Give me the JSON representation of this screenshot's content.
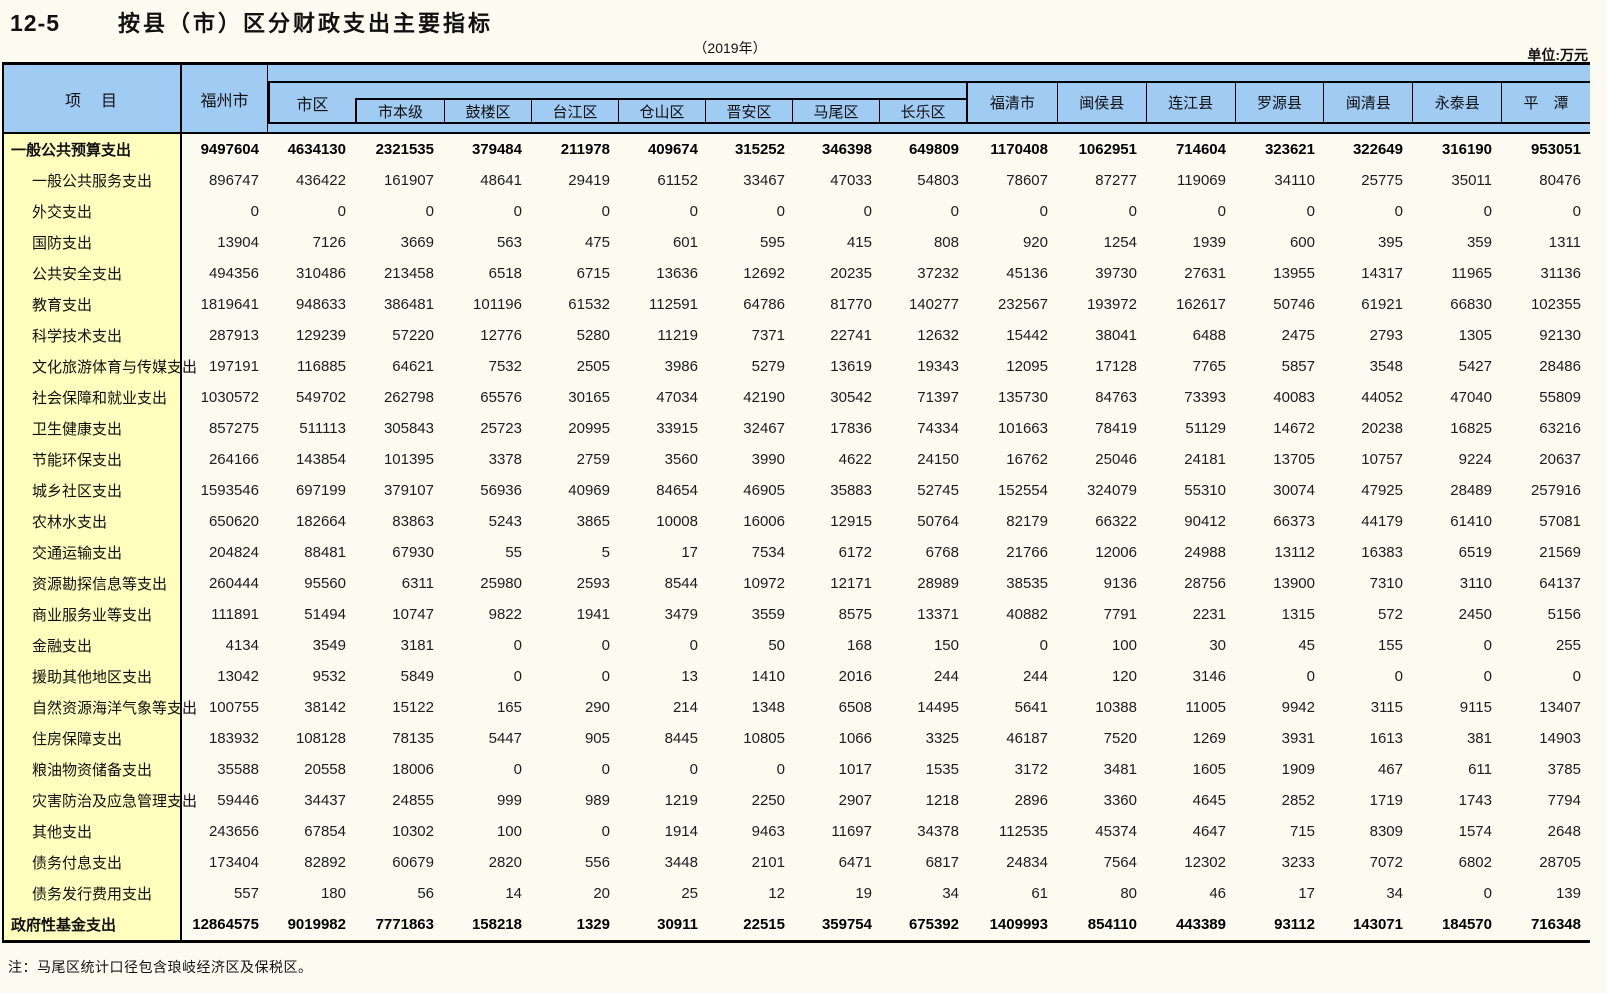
{
  "page": {
    "table_no": "12-5",
    "title": "按县（市）区分财政支出主要指标",
    "subtitle": "（2019年）",
    "unit_label": "单位:万元",
    "note": "注：马尾区统计口径包含琅岐经济区及保税区。"
  },
  "header": {
    "item": "项　目",
    "fuzhou": "福州市",
    "shiqu": "市区",
    "shiqu_sub": [
      "市本级",
      "鼓楼区",
      "台江区",
      "仓山区",
      "晋安区",
      "马尾区",
      "长乐区"
    ],
    "counties": [
      "福清市",
      "闽侯县",
      "连江县",
      "罗源县",
      "闽清县",
      "永泰县",
      "平　潭"
    ]
  },
  "colors": {
    "header_bg": "#A0CBF3",
    "label_col_bg": "#FFFFBE",
    "body_bg": "#FBFBF2",
    "border": "#000000"
  },
  "table": {
    "type": "table",
    "columns": [
      "福州市",
      "市区",
      "市本级",
      "鼓楼区",
      "台江区",
      "仓山区",
      "晋安区",
      "马尾区",
      "长乐区",
      "福清市",
      "闽侯县",
      "连江县",
      "罗源县",
      "闽清县",
      "永泰县",
      "平潭"
    ],
    "rows": [
      {
        "label": "一般公共预算支出",
        "bold": true,
        "values": [
          9497604,
          4634130,
          2321535,
          379484,
          211978,
          409674,
          315252,
          346398,
          649809,
          1170408,
          1062951,
          714604,
          323621,
          322649,
          316190,
          953051
        ]
      },
      {
        "label": "一般公共服务支出",
        "bold": false,
        "values": [
          896747,
          436422,
          161907,
          48641,
          29419,
          61152,
          33467,
          47033,
          54803,
          78607,
          87277,
          119069,
          34110,
          25775,
          35011,
          80476
        ]
      },
      {
        "label": "外交支出",
        "bold": false,
        "values": [
          0,
          0,
          0,
          0,
          0,
          0,
          0,
          0,
          0,
          0,
          0,
          0,
          0,
          0,
          0,
          0
        ]
      },
      {
        "label": "国防支出",
        "bold": false,
        "values": [
          13904,
          7126,
          3669,
          563,
          475,
          601,
          595,
          415,
          808,
          920,
          1254,
          1939,
          600,
          395,
          359,
          1311
        ]
      },
      {
        "label": "公共安全支出",
        "bold": false,
        "values": [
          494356,
          310486,
          213458,
          6518,
          6715,
          13636,
          12692,
          20235,
          37232,
          45136,
          39730,
          27631,
          13955,
          14317,
          11965,
          31136
        ]
      },
      {
        "label": "教育支出",
        "bold": false,
        "values": [
          1819641,
          948633,
          386481,
          101196,
          61532,
          112591,
          64786,
          81770,
          140277,
          232567,
          193972,
          162617,
          50746,
          61921,
          66830,
          102355
        ]
      },
      {
        "label": "科学技术支出",
        "bold": false,
        "values": [
          287913,
          129239,
          57220,
          12776,
          5280,
          11219,
          7371,
          22741,
          12632,
          15442,
          38041,
          6488,
          2475,
          2793,
          1305,
          92130
        ]
      },
      {
        "label": "文化旅游体育与传媒支出",
        "bold": false,
        "values": [
          197191,
          116885,
          64621,
          7532,
          2505,
          3986,
          5279,
          13619,
          19343,
          12095,
          17128,
          7765,
          5857,
          3548,
          5427,
          28486
        ]
      },
      {
        "label": "社会保障和就业支出",
        "bold": false,
        "values": [
          1030572,
          549702,
          262798,
          65576,
          30165,
          47034,
          42190,
          30542,
          71397,
          135730,
          84763,
          73393,
          40083,
          44052,
          47040,
          55809
        ]
      },
      {
        "label": "卫生健康支出",
        "bold": false,
        "values": [
          857275,
          511113,
          305843,
          25723,
          20995,
          33915,
          32467,
          17836,
          74334,
          101663,
          78419,
          51129,
          14672,
          20238,
          16825,
          63216
        ]
      },
      {
        "label": "节能环保支出",
        "bold": false,
        "values": [
          264166,
          143854,
          101395,
          3378,
          2759,
          3560,
          3990,
          4622,
          24150,
          16762,
          25046,
          24181,
          13705,
          10757,
          9224,
          20637
        ]
      },
      {
        "label": "城乡社区支出",
        "bold": false,
        "values": [
          1593546,
          697199,
          379107,
          56936,
          40969,
          84654,
          46905,
          35883,
          52745,
          152554,
          324079,
          55310,
          30074,
          47925,
          28489,
          257916
        ]
      },
      {
        "label": "农林水支出",
        "bold": false,
        "values": [
          650620,
          182664,
          83863,
          5243,
          3865,
          10008,
          16006,
          12915,
          50764,
          82179,
          66322,
          90412,
          66373,
          44179,
          61410,
          57081
        ]
      },
      {
        "label": "交通运输支出",
        "bold": false,
        "values": [
          204824,
          88481,
          67930,
          55,
          5,
          17,
          7534,
          6172,
          6768,
          21766,
          12006,
          24988,
          13112,
          16383,
          6519,
          21569
        ]
      },
      {
        "label": "资源勘探信息等支出",
        "bold": false,
        "values": [
          260444,
          95560,
          6311,
          25980,
          2593,
          8544,
          10972,
          12171,
          28989,
          38535,
          9136,
          28756,
          13900,
          7310,
          3110,
          64137
        ]
      },
      {
        "label": "商业服务业等支出",
        "bold": false,
        "values": [
          111891,
          51494,
          10747,
          9822,
          1941,
          3479,
          3559,
          8575,
          13371,
          40882,
          7791,
          2231,
          1315,
          572,
          2450,
          5156
        ]
      },
      {
        "label": "金融支出",
        "bold": false,
        "values": [
          4134,
          3549,
          3181,
          0,
          0,
          0,
          50,
          168,
          150,
          0,
          100,
          30,
          45,
          155,
          0,
          255
        ]
      },
      {
        "label": "援助其他地区支出",
        "bold": false,
        "values": [
          13042,
          9532,
          5849,
          0,
          0,
          13,
          1410,
          2016,
          244,
          244,
          120,
          3146,
          0,
          0,
          0,
          0
        ]
      },
      {
        "label": "自然资源海洋气象等支出",
        "bold": false,
        "values": [
          100755,
          38142,
          15122,
          165,
          290,
          214,
          1348,
          6508,
          14495,
          5641,
          10388,
          11005,
          9942,
          3115,
          9115,
          13407
        ]
      },
      {
        "label": "住房保障支出",
        "bold": false,
        "values": [
          183932,
          108128,
          78135,
          5447,
          905,
          8445,
          10805,
          1066,
          3325,
          46187,
          7520,
          1269,
          3931,
          1613,
          381,
          14903
        ]
      },
      {
        "label": "粮油物资储备支出",
        "bold": false,
        "values": [
          35588,
          20558,
          18006,
          0,
          0,
          0,
          0,
          1017,
          1535,
          3172,
          3481,
          1605,
          1909,
          467,
          611,
          3785
        ]
      },
      {
        "label": "灾害防治及应急管理支出",
        "bold": false,
        "values": [
          59446,
          34437,
          24855,
          999,
          989,
          1219,
          2250,
          2907,
          1218,
          2896,
          3360,
          4645,
          2852,
          1719,
          1743,
          7794
        ]
      },
      {
        "label": "其他支出",
        "bold": false,
        "values": [
          243656,
          67854,
          10302,
          100,
          0,
          1914,
          9463,
          11697,
          34378,
          112535,
          45374,
          4647,
          715,
          8309,
          1574,
          2648
        ]
      },
      {
        "label": "债务付息支出",
        "bold": false,
        "values": [
          173404,
          82892,
          60679,
          2820,
          556,
          3448,
          2101,
          6471,
          6817,
          24834,
          7564,
          12302,
          3233,
          7072,
          6802,
          28705
        ]
      },
      {
        "label": "债务发行费用支出",
        "bold": false,
        "values": [
          557,
          180,
          56,
          14,
          20,
          25,
          12,
          19,
          34,
          61,
          80,
          46,
          17,
          34,
          0,
          139
        ]
      },
      {
        "label": "政府性基金支出",
        "bold": true,
        "values": [
          12864575,
          9019982,
          7771863,
          158218,
          1329,
          30911,
          22515,
          359754,
          675392,
          1409993,
          854110,
          443389,
          93112,
          143071,
          184570,
          716348
        ]
      }
    ]
  }
}
